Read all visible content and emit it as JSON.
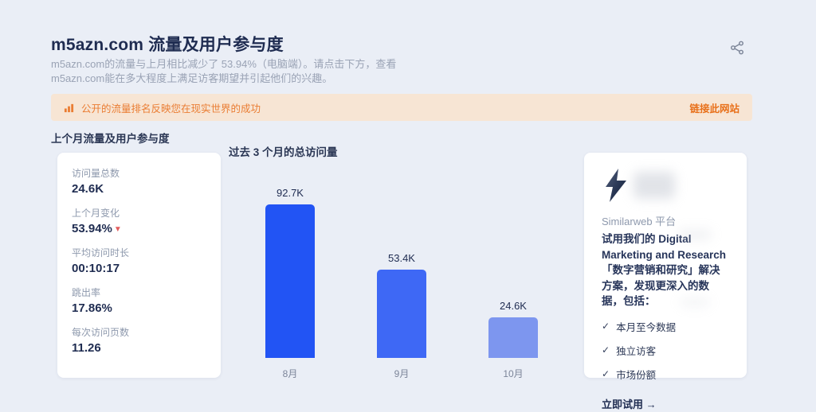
{
  "header": {
    "title": "m5azn.com 流量及用户参与度",
    "subtitle_line1": "m5azn.com的流量与上月相比减少了 53.94%（电脑端）。请点击下方，查看",
    "subtitle_line2": "m5azn.com能在多大程度上满足访客期望并引起他们的兴趣。"
  },
  "banner": {
    "message": "公开的流量排名反映您在现实世界的成功",
    "link_label": "链接此网站",
    "bg_color": "#f7e5d4",
    "text_color": "#ea7d33"
  },
  "sections": {
    "left_title": "上个月流量及用户参与度",
    "chart_title": "过去 3 个月的总访问量"
  },
  "stats": {
    "items": [
      {
        "label": "访问量总数",
        "value": "24.6K"
      },
      {
        "label": "上个月变化",
        "value": "53.94%",
        "direction": "down"
      },
      {
        "label": "平均访问时长",
        "value": "00:10:17"
      },
      {
        "label": "跳出率",
        "value": "17.86%"
      },
      {
        "label": "每次访问页数",
        "value": "11.26"
      }
    ]
  },
  "chart_data": {
    "type": "bar",
    "title": "过去 3 个月的总访问量",
    "categories": [
      "8月",
      "9月",
      "10月"
    ],
    "values": [
      92700,
      53400,
      24600
    ],
    "value_labels": [
      "92.7K",
      "53.4K",
      "24.6K"
    ],
    "bar_colors": [
      "#2254f4",
      "#3e68f5",
      "#7d96ef"
    ],
    "xlabel": "",
    "ylabel": "",
    "ylim": [
      0,
      100000
    ],
    "grid": false,
    "legend": "none"
  },
  "promo": {
    "brand": "Similarweb 平台",
    "description": "试用我们的 Digital Marketing and Research 「数字营销和研究」解决方案，发现更深入的数据，包括：",
    "checklist": [
      "本月至今数据",
      "独立访客",
      "市场份额"
    ],
    "cta_label": "立即试用",
    "cta_arrow": "→"
  },
  "icons": {
    "share": "share-icon",
    "banner_chart": "bar-chart-icon",
    "bolt": "lightning-bolt-icon",
    "check": "✓",
    "down_triangle": "▼"
  },
  "colors": {
    "page_bg": "#eaeef6",
    "card_bg": "#ffffff",
    "heading": "#1f2c51",
    "muted": "#9aa3b5",
    "negative": "#e25c5c"
  }
}
